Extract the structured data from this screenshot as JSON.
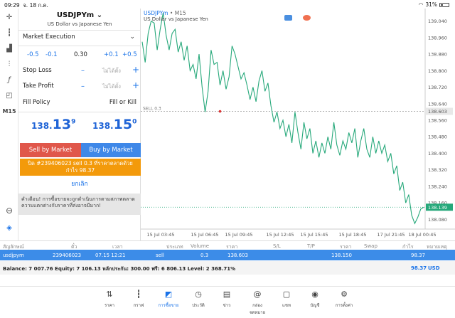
{
  "status_bar": {
    "time": "09:29",
    "date": "จ. 18 ก.ค.",
    "battery": "31%"
  },
  "toolbar": {
    "timeframe": "M15"
  },
  "order": {
    "symbol": "USDJPYm",
    "description": "US Dollar vs Japanese Yen",
    "execution": "Market Execution",
    "volume_steps": [
      "-0.5",
      "-0.1",
      "0.30",
      "+0.1",
      "+0.5"
    ],
    "stop_loss_label": "Stop Loss",
    "take_profit_label": "Take Profit",
    "not_set": "ไม่ได้ตั้ง",
    "fill_policy_label": "Fill Policy",
    "fill_policy_value": "Fill or Kill",
    "bid": {
      "main": "138.",
      "big": "13",
      "sup": "9"
    },
    "ask": {
      "main": "138.",
      "big": "15",
      "sup": "0"
    },
    "sell_label": "Sell by Market",
    "buy_label": "Buy by Market",
    "close_line1": "ปิด #239406023 sell 0.3 ที่ราคาตลาดด้วย",
    "close_line2": "กำไร 98.37",
    "cancel_label": "ยกเลิก",
    "warning": "คำเตือน! การซื้อขายจะถูกดำเนินการตามสภาพตลาด ความแตกต่างกับราคาที่ส่งอาจมีมาก!"
  },
  "chart": {
    "symbol": "USDJPYm",
    "timeframe": "M15",
    "description": "US Dollar vs Japanese Yen",
    "sell_marker": "SELL 0.3",
    "sell_price_label": "138.603",
    "current_price_label": "138.139",
    "colors": {
      "line": "#26a87a",
      "price_line": "#26a87a",
      "sell_line": "#999999"
    }
  },
  "chart_data": {
    "type": "line",
    "y_ticks": [
      "139.040",
      "138.960",
      "138.880",
      "138.800",
      "138.720",
      "138.640",
      "138.603",
      "138.560",
      "138.480",
      "138.400",
      "138.320",
      "138.240",
      "138.160",
      "138.139",
      "138.080"
    ],
    "ylim": [
      138.04,
      139.08
    ],
    "x_ticks": [
      "15 Jul 03:45",
      "15 Jul 06:45",
      "15 Jul 09:45",
      "15 Jul 12:45",
      "15 Jul 15:45",
      "15 Jul 18:45",
      "17 Jul 21:45",
      "18 Jul 00:45"
    ],
    "series": [
      {
        "values": [
          138.94,
          138.84,
          138.98,
          139.04,
          139.03,
          138.9,
          139.0,
          139.08,
          138.97,
          138.9,
          138.98,
          139.0,
          138.89,
          138.94,
          138.85,
          138.92,
          138.8,
          138.83,
          138.76,
          138.88,
          138.72,
          138.6,
          138.7,
          138.9,
          138.83,
          138.84,
          138.73,
          138.8,
          138.71,
          138.77,
          138.92,
          138.88,
          138.82,
          138.76,
          138.79,
          138.73,
          138.66,
          138.72,
          138.65,
          138.75,
          138.8,
          138.7,
          138.74,
          138.63,
          138.55,
          138.6,
          138.52,
          138.56,
          138.48,
          138.54,
          138.45,
          138.6,
          138.5,
          138.42,
          138.55,
          138.47,
          138.52,
          138.4,
          138.46,
          138.38,
          138.45,
          138.4,
          138.48,
          138.42,
          138.55,
          138.44,
          138.39,
          138.46,
          138.42,
          138.5,
          138.45,
          138.52,
          138.38,
          138.46,
          138.52,
          138.42,
          138.38,
          138.48,
          138.4,
          138.46,
          138.4,
          138.44,
          138.36,
          138.4,
          138.3,
          138.34,
          138.22,
          138.26,
          138.16,
          138.2,
          138.1,
          138.06,
          138.09,
          138.13,
          138.139
        ]
      }
    ],
    "sell_level": 138.603,
    "current_level": 138.139,
    "sell_point_index": 26
  },
  "trades": {
    "headers": [
      "สัญลักษณ์",
      "ตั๋ว",
      "เวลา",
      "ประเภท",
      "Volume",
      "ราคา",
      "S/L",
      "T/P",
      "ราคา",
      "Swap",
      "กำไร",
      "หมายเหตุ"
    ],
    "row": {
      "symbol": "usdjpym",
      "ticket": "239406023",
      "time": "07.15 12:21",
      "type": "sell",
      "volume": "0.3",
      "price": "138.603",
      "current": "138.150",
      "profit": "98.37"
    },
    "balance_line": "Balance: 7 007.76 Equity: 7 106.13 หลักประกัน: 300.00 ฟรี: 6 806.13 Level: 2 368.71%",
    "total_profit": "98.37",
    "currency": "USD"
  },
  "tabs": [
    {
      "icon": "quotes-icon",
      "label": "ราคา"
    },
    {
      "icon": "chart-icon",
      "label": "กราฟ"
    },
    {
      "icon": "trade-icon",
      "label": "การซื้อขาย"
    },
    {
      "icon": "history-icon",
      "label": "ประวัติ"
    },
    {
      "icon": "news-icon",
      "label": "ข่าว"
    },
    {
      "icon": "mailbox-icon",
      "label": "กล่องจดหมาย"
    },
    {
      "icon": "chat-icon",
      "label": "แชท"
    },
    {
      "icon": "account-icon",
      "label": "บัญชี"
    },
    {
      "icon": "settings-icon",
      "label": "การตั้งค่า"
    }
  ]
}
